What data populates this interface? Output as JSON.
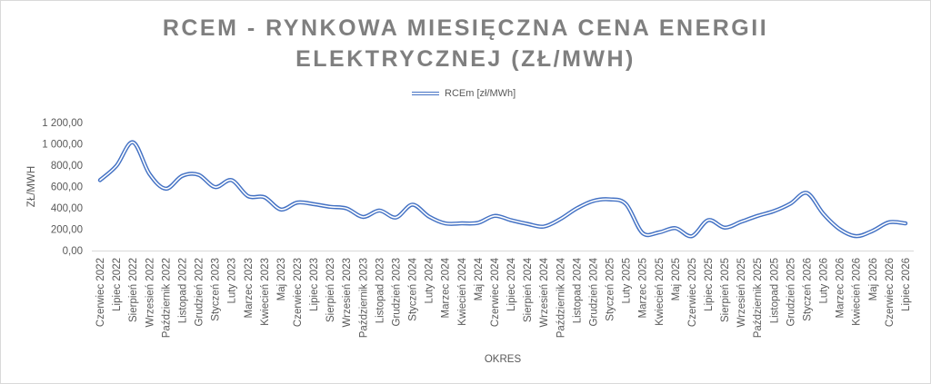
{
  "chart_data": {
    "type": "line",
    "title_lines": [
      "RCEM - RYNKOWA MIESIĘCZNA CENA ENERGII",
      "ELEKTRYCZNEJ (ZŁ/MWH)"
    ],
    "xlabel": "OKRES",
    "ylabel": "ZŁ/MWH",
    "ylim": [
      0,
      1200
    ],
    "y_ticks": [
      "0,00",
      "200,00",
      "400,00",
      "600,00",
      "800,00",
      "1 000,00",
      "1 200,00"
    ],
    "legend_position": "top-center",
    "grid": false,
    "categories": [
      "Czerwiec 2022",
      "Lipiec 2022",
      "Sierpień 2022",
      "Wrzesień 2022",
      "Październik 2022",
      "Listopad 2022",
      "Grudzień 2022",
      "Styczeń 2023",
      "Luty 2023",
      "Marzec 2023",
      "Kwiecień 2023",
      "Maj 2023",
      "Czerwiec 2023",
      "Lipiec 2023",
      "Sierpień 2023",
      "Wrzesień 2023",
      "Październik 2023",
      "Listopad 2023",
      "Grudzień 2023",
      "Styczeń 2024",
      "Luty 2024",
      "Marzec 2024",
      "Kwiecień 2024",
      "Maj 2024",
      "Czerwiec 2024",
      "Lipiec 2024",
      "Sierpień 2024",
      "Wrzesień 2024",
      "Październik 2024",
      "Listopad 2024",
      "Grudzień 2024",
      "Styczeń 2025",
      "Luty 2025",
      "Marzec 2025",
      "Kwiecień 2025",
      "Maj 2025",
      "Czerwiec 2025",
      "Lipiec 2025",
      "Sierpień 2025",
      "Wrzesień 2025",
      "Październik 2025",
      "Listopad 2025",
      "Grudzień 2025",
      "Styczeń 2026",
      "Luty 2026",
      "Marzec 2026",
      "Kwiecień 2026",
      "Maj 2026",
      "Czerwiec 2026",
      "Lipiec 2026"
    ],
    "series": [
      {
        "name": "RCEm [zł/MWh]",
        "color": "#4472c4",
        "values": [
          660,
          795,
          1015,
          720,
          580,
          700,
          710,
          595,
          660,
          510,
          500,
          385,
          450,
          435,
          410,
          395,
          315,
          375,
          310,
          430,
          320,
          255,
          255,
          260,
          325,
          285,
          250,
          225,
          295,
          395,
          465,
          480,
          435,
          165,
          170,
          210,
          135,
          285,
          215,
          270,
          325,
          370,
          440,
          540,
          345,
          200,
          135,
          185,
          265,
          255
        ]
      }
    ]
  }
}
